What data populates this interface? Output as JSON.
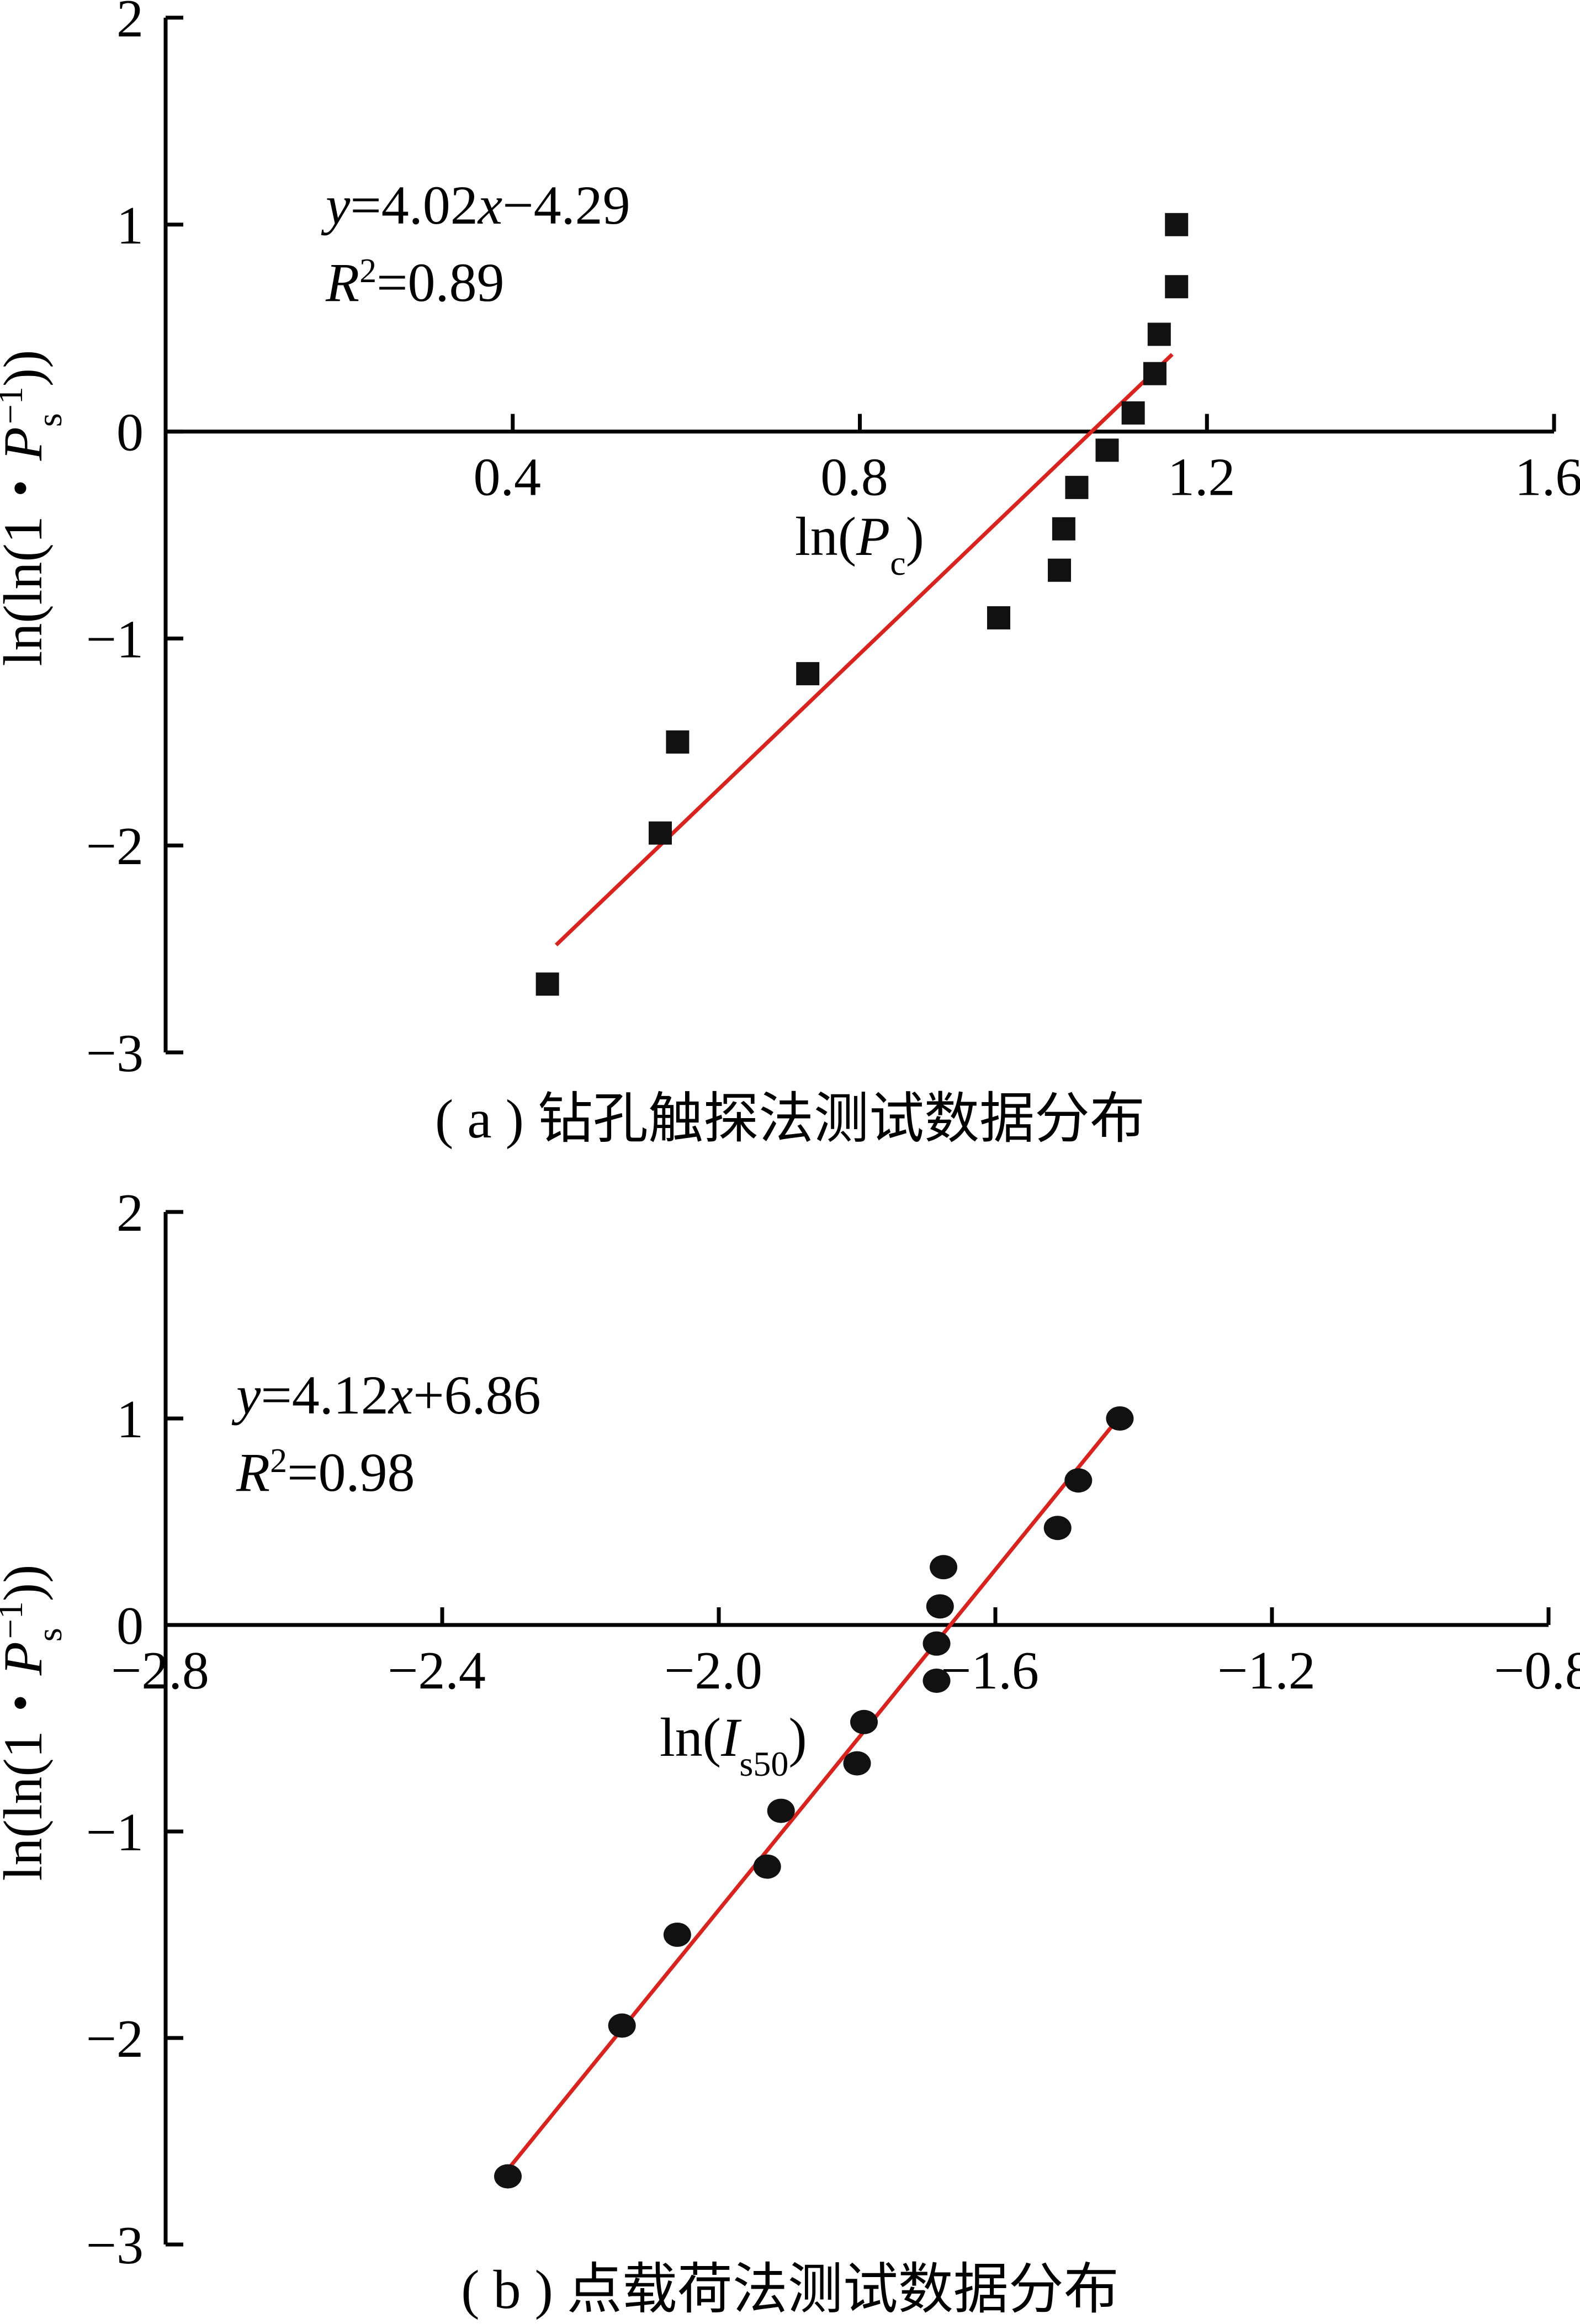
{
  "chart_data": [
    {
      "id": "a",
      "type": "scatter",
      "marker": "square",
      "caption": "( a ) 钻孔触探法测试数据分布",
      "xlabel": "ln(P_c)",
      "ylabel": "ln(ln(1・P_s^-1))",
      "xlim": [
        0.0,
        1.6
      ],
      "ylim": [
        -3,
        2
      ],
      "xticks": [
        "0.4",
        "0.8",
        "1.2",
        "1.6"
      ],
      "yticks": [
        "2",
        "1",
        "0",
        "−1",
        "−2",
        "−3"
      ],
      "equation": {
        "lhs": "y",
        "rhs_num": "=4.02",
        "rhs_var": "x",
        "rhs_tail": "−4.29"
      },
      "r2": {
        "r": "R",
        "sup": "2",
        "val": "=0.89"
      },
      "fit": {
        "slope": 4.02,
        "intercept": -4.29,
        "x_start": 0.45,
        "x_end": 1.16
      },
      "points": [
        {
          "x": 0.44,
          "y": -2.67
        },
        {
          "x": 0.57,
          "y": -1.94
        },
        {
          "x": 0.59,
          "y": -1.5
        },
        {
          "x": 0.74,
          "y": -1.17
        },
        {
          "x": 0.96,
          "y": -0.9
        },
        {
          "x": 1.03,
          "y": -0.67
        },
        {
          "x": 1.035,
          "y": -0.47
        },
        {
          "x": 1.05,
          "y": -0.27
        },
        {
          "x": 1.085,
          "y": -0.09
        },
        {
          "x": 1.115,
          "y": 0.09
        },
        {
          "x": 1.14,
          "y": 0.28
        },
        {
          "x": 1.145,
          "y": 0.47
        },
        {
          "x": 1.165,
          "y": 0.7
        },
        {
          "x": 1.165,
          "y": 1.0
        }
      ]
    },
    {
      "id": "b",
      "type": "scatter",
      "marker": "circle",
      "caption": "( b ) 点载荷法测试数据分布",
      "xlabel": "ln(I_s50)",
      "ylabel": "ln(ln(1・P_s^-1))",
      "xlim": [
        -2.8,
        -0.8
      ],
      "ylim": [
        -3,
        2
      ],
      "xticks": [
        "−2.8",
        "−2.4",
        "−2.0",
        "−1.6",
        "−1.2",
        "−0.8"
      ],
      "yticks": [
        "2",
        "1",
        "0",
        "−1",
        "−2",
        "−3"
      ],
      "equation": {
        "lhs": "y",
        "rhs_num": "=4.12",
        "rhs_var": "x",
        "rhs_tail": "+6.86"
      },
      "r2": {
        "r": "R",
        "sup": "2",
        "val": "=0.98"
      },
      "fit": {
        "slope": 4.12,
        "intercept": 6.86,
        "x_start": -2.315,
        "x_end": -1.418
      },
      "points": [
        {
          "x": -2.305,
          "y": -2.67
        },
        {
          "x": -2.14,
          "y": -1.94
        },
        {
          "x": -2.06,
          "y": -1.5
        },
        {
          "x": -1.93,
          "y": -1.17
        },
        {
          "x": -1.91,
          "y": -0.9
        },
        {
          "x": -1.8,
          "y": -0.67
        },
        {
          "x": -1.79,
          "y": -0.47
        },
        {
          "x": -1.685,
          "y": -0.27
        },
        {
          "x": -1.685,
          "y": -0.09
        },
        {
          "x": -1.68,
          "y": 0.09
        },
        {
          "x": -1.675,
          "y": 0.28
        },
        {
          "x": -1.51,
          "y": 0.47
        },
        {
          "x": -1.48,
          "y": 0.7
        },
        {
          "x": -1.42,
          "y": 1.0
        }
      ]
    }
  ]
}
